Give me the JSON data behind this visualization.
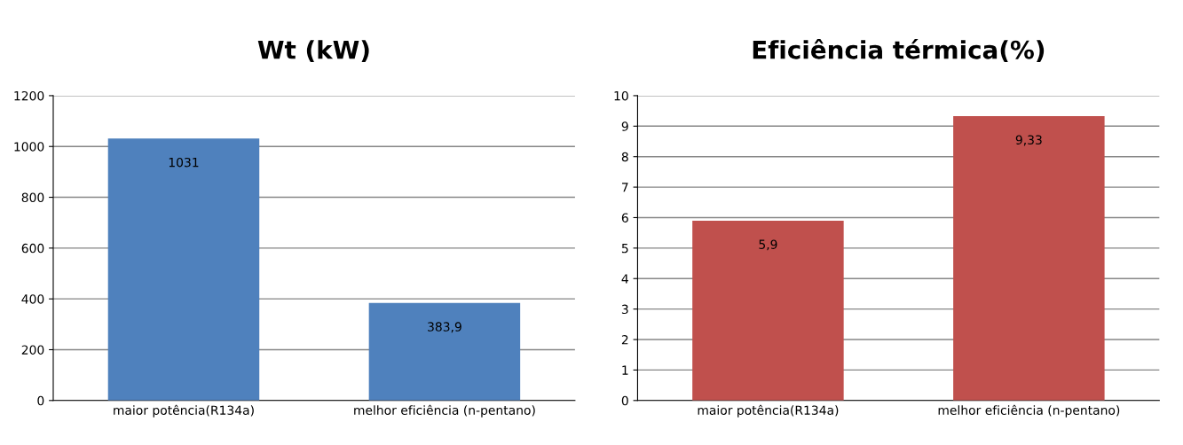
{
  "chart_data": [
    {
      "type": "bar",
      "title": "Wt (kW)",
      "categories": [
        "maior potência(R134a)",
        "melhor eficiência (n-pentano)"
      ],
      "values": [
        1031,
        383.9
      ],
      "color": "#4f81bd",
      "value_labels": [
        "1031",
        "383,9"
      ],
      "ylim": [
        0,
        1200
      ],
      "yticks": [
        0,
        200,
        400,
        600,
        800,
        1000,
        1200
      ],
      "grid": "y",
      "legend": false
    },
    {
      "type": "bar",
      "title": "Eficiência térmica(%)",
      "categories": [
        "maior potência(R134a)",
        "melhor eficiência (n-pentano)"
      ],
      "values": [
        5.9,
        9.33
      ],
      "color": "#c0504d",
      "value_labels": [
        "5,9",
        "9,33"
      ],
      "ylim": [
        0,
        10
      ],
      "yticks": [
        0,
        1,
        2,
        3,
        4,
        5,
        6,
        7,
        8,
        9,
        10
      ],
      "grid": "y",
      "legend": false
    }
  ]
}
